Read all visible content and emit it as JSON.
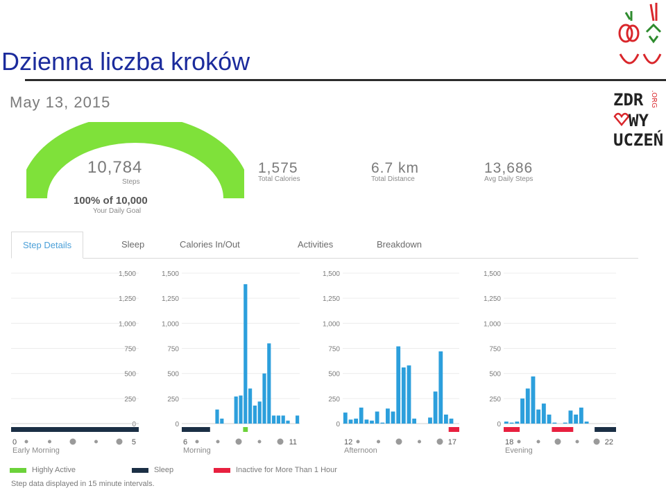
{
  "slide": {
    "title": "Dzienna liczba kroków"
  },
  "logo": {
    "text_lines": [
      "ZDR",
      "WY",
      "UCZEŃ"
    ],
    "suffix": ".ORG"
  },
  "summary": {
    "date": "May 13, 2015",
    "steps_value": "10,784",
    "steps_label": "Steps",
    "goal_text": "100% of 10,000",
    "goal_label": "Your Daily Goal",
    "goal_fraction": 1.0,
    "stats": [
      {
        "value": "1,575",
        "label": "Total Calories"
      },
      {
        "value": "6.7 km",
        "label": "Total Distance"
      },
      {
        "value": "13,686",
        "label": "Avg Daily Steps"
      }
    ]
  },
  "tabs": [
    {
      "label": "Step Details",
      "active": true
    },
    {
      "label": "Sleep",
      "active": false
    },
    {
      "label": "Calories In/Out",
      "active": false
    },
    {
      "label": "Activities",
      "active": false
    },
    {
      "label": "Breakdown",
      "active": false
    }
  ],
  "colors": {
    "bar": "#2c9fdc",
    "gauge": "#7fe13a",
    "highly_active": "#6cd23a",
    "sleep": "#1b2f45",
    "inactive": "#e8203f",
    "title": "#1b2b9c"
  },
  "chart_data": [
    {
      "type": "bar",
      "period": "Early Morning",
      "x_ticks": [
        "0",
        "5"
      ],
      "y_ticks": [
        "0",
        "250",
        "500",
        "750",
        "1,000",
        "1,250",
        "1,500"
      ],
      "ylim": [
        0,
        1500
      ],
      "values": [
        0,
        0,
        0,
        0,
        0,
        0,
        0,
        0,
        0,
        0,
        0,
        0,
        0,
        0,
        0,
        0,
        0,
        0,
        0,
        0,
        0,
        0,
        0,
        0
      ],
      "status_segments": [
        {
          "type": "sleep",
          "start": 0,
          "end": 24
        }
      ]
    },
    {
      "type": "bar",
      "period": "Morning",
      "x_ticks": [
        "6",
        "11"
      ],
      "y_ticks": [
        "0",
        "250",
        "500",
        "750",
        "1,000",
        "1,250",
        "1,500"
      ],
      "ylim": [
        0,
        1500
      ],
      "values": [
        0,
        0,
        0,
        0,
        0,
        0,
        0,
        140,
        50,
        0,
        0,
        270,
        280,
        1390,
        350,
        180,
        220,
        500,
        800,
        80,
        80,
        80,
        30,
        0,
        80
      ],
      "status_segments": [
        {
          "type": "sleep",
          "start": 0,
          "end": 6
        },
        {
          "type": "highly_active",
          "start": 13,
          "end": 14
        }
      ]
    },
    {
      "type": "bar",
      "period": "Afternoon",
      "x_ticks": [
        "12",
        "17"
      ],
      "y_ticks": [
        "0",
        "250",
        "500",
        "750",
        "1,000",
        "1,250",
        "1,500"
      ],
      "ylim": [
        0,
        1500
      ],
      "values": [
        110,
        40,
        50,
        160,
        40,
        30,
        120,
        10,
        150,
        120,
        770,
        560,
        580,
        50,
        0,
        0,
        60,
        320,
        720,
        90,
        50,
        0
      ],
      "status_segments": [
        {
          "type": "inactive",
          "start": 20,
          "end": 22
        }
      ]
    },
    {
      "type": "bar",
      "period": "Evening",
      "x_ticks": [
        "18",
        "22"
      ],
      "y_ticks": [
        "0",
        "250",
        "500",
        "750",
        "1,000",
        "1,250",
        "1,500"
      ],
      "ylim": [
        0,
        1500
      ],
      "values": [
        20,
        10,
        20,
        250,
        350,
        470,
        140,
        200,
        90,
        10,
        0,
        10,
        130,
        90,
        160,
        20,
        0,
        0,
        0,
        0,
        0
      ],
      "status_segments": [
        {
          "type": "inactive",
          "start": 0,
          "end": 3
        },
        {
          "type": "inactive",
          "start": 9,
          "end": 13
        },
        {
          "type": "sleep",
          "start": 17,
          "end": 21
        }
      ]
    }
  ],
  "legend": [
    {
      "label": "Highly Active",
      "color_key": "highly_active"
    },
    {
      "label": "Sleep",
      "color_key": "sleep"
    },
    {
      "label": "Inactive for More Than 1 Hour",
      "color_key": "inactive"
    }
  ],
  "footnote": "Step data displayed in 15 minute intervals."
}
